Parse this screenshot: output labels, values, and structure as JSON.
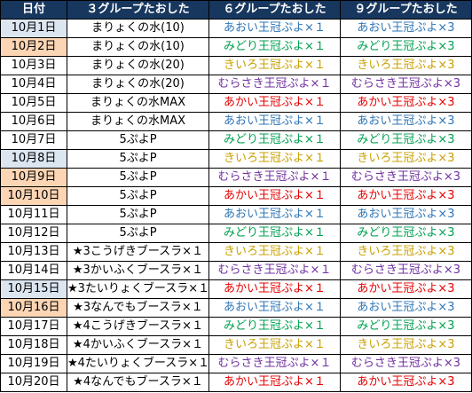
{
  "colors": {
    "header_bg": "#17375e",
    "header_text": "#ffffff",
    "saturday_bg": "#dce6f1",
    "sunday_bg": "#fcd5b4",
    "blue": "#2e75b6",
    "green": "#00a050",
    "yellow": "#c8a000",
    "purple": "#7030a0",
    "red": "#e60000"
  },
  "headers": {
    "date": "日付",
    "g3": "３グループたおした",
    "g6": "６グループたおした",
    "g9": "９グループたおした"
  },
  "rows": [
    {
      "date": "10月1日",
      "day": "sat",
      "g3": "まりょくの水(10)",
      "g6": "あおい王冠ぷよ×１",
      "g9": "あおい王冠ぷよ×3",
      "color": "blue"
    },
    {
      "date": "10月2日",
      "day": "sun",
      "g3": "まりょくの水(10)",
      "g6": "みどり王冠ぷよ×１",
      "g9": "みどり王冠ぷよ×3",
      "color": "green"
    },
    {
      "date": "10月3日",
      "day": "",
      "g3": "まりょくの水(20)",
      "g6": "きいろ王冠ぷよ×１",
      "g9": "きいろ王冠ぷよ×3",
      "color": "yellow"
    },
    {
      "date": "10月4日",
      "day": "",
      "g3": "まりょくの水(20)",
      "g6": "むらさき王冠ぷよ×１",
      "g9": "むらさき王冠ぷよ×3",
      "color": "purple"
    },
    {
      "date": "10月5日",
      "day": "",
      "g3": "まりょくの水MAX",
      "g6": "あかい王冠ぷよ×１",
      "g9": "あかい王冠ぷよ×3",
      "color": "red"
    },
    {
      "date": "10月6日",
      "day": "",
      "g3": "まりょくの水MAX",
      "g6": "あおい王冠ぷよ×１",
      "g9": "あおい王冠ぷよ×3",
      "color": "blue"
    },
    {
      "date": "10月7日",
      "day": "",
      "g3": "5ぷよP",
      "g6": "みどり王冠ぷよ×１",
      "g9": "みどり王冠ぷよ×3",
      "color": "green"
    },
    {
      "date": "10月8日",
      "day": "sat",
      "g3": "5ぷよP",
      "g6": "きいろ王冠ぷよ×１",
      "g9": "きいろ王冠ぷよ×3",
      "color": "yellow"
    },
    {
      "date": "10月9日",
      "day": "sun",
      "g3": "5ぷよP",
      "g6": "むらさき王冠ぷよ×１",
      "g9": "むらさき王冠ぷよ×3",
      "color": "purple"
    },
    {
      "date": "10月10日",
      "day": "sun",
      "g3": "5ぷよP",
      "g6": "あかい王冠ぷよ×１",
      "g9": "あかい王冠ぷよ×3",
      "color": "red"
    },
    {
      "date": "10月11日",
      "day": "",
      "g3": "5ぷよP",
      "g6": "あおい王冠ぷよ×１",
      "g9": "あおい王冠ぷよ×3",
      "color": "blue"
    },
    {
      "date": "10月12日",
      "day": "",
      "g3": "5ぷよP",
      "g6": "みどり王冠ぷよ×１",
      "g9": "みどり王冠ぷよ×3",
      "color": "green"
    },
    {
      "date": "10月13日",
      "day": "",
      "g3": "★3こうげきブースラ×１",
      "g6": "きいろ王冠ぷよ×１",
      "g9": "きいろ王冠ぷよ×3",
      "color": "yellow"
    },
    {
      "date": "10月14日",
      "day": "",
      "g3": "★3かいふくブースラ×１",
      "g6": "むらさき王冠ぷよ×１",
      "g9": "むらさき王冠ぷよ×3",
      "color": "purple"
    },
    {
      "date": "10月15日",
      "day": "sat",
      "g3": "★3たいりょくブースラ×１",
      "g6": "あかい王冠ぷよ×１",
      "g9": "あかい王冠ぷよ×3",
      "color": "red"
    },
    {
      "date": "10月16日",
      "day": "sun",
      "g3": "★3なんでもブースラ×１",
      "g6": "あおい王冠ぷよ×１",
      "g9": "あおい王冠ぷよ×3",
      "color": "blue"
    },
    {
      "date": "10月17日",
      "day": "",
      "g3": "★4こうげきブースラ×１",
      "g6": "みどり王冠ぷよ×１",
      "g9": "みどり王冠ぷよ×3",
      "color": "green"
    },
    {
      "date": "10月18日",
      "day": "",
      "g3": "★4かいふくブースラ×１",
      "g6": "きいろ王冠ぷよ×１",
      "g9": "きいろ王冠ぷよ×3",
      "color": "yellow"
    },
    {
      "date": "10月19日",
      "day": "",
      "g3": "★4たいりょくブースラ×１",
      "g6": "むらさき王冠ぷよ×１",
      "g9": "むらさき王冠ぷよ×3",
      "color": "purple"
    },
    {
      "date": "10月20日",
      "day": "",
      "g3": "★4なんでもブースラ×１",
      "g6": "あかい王冠ぷよ×１",
      "g9": "あかい王冠ぷよ×3",
      "color": "red"
    }
  ]
}
